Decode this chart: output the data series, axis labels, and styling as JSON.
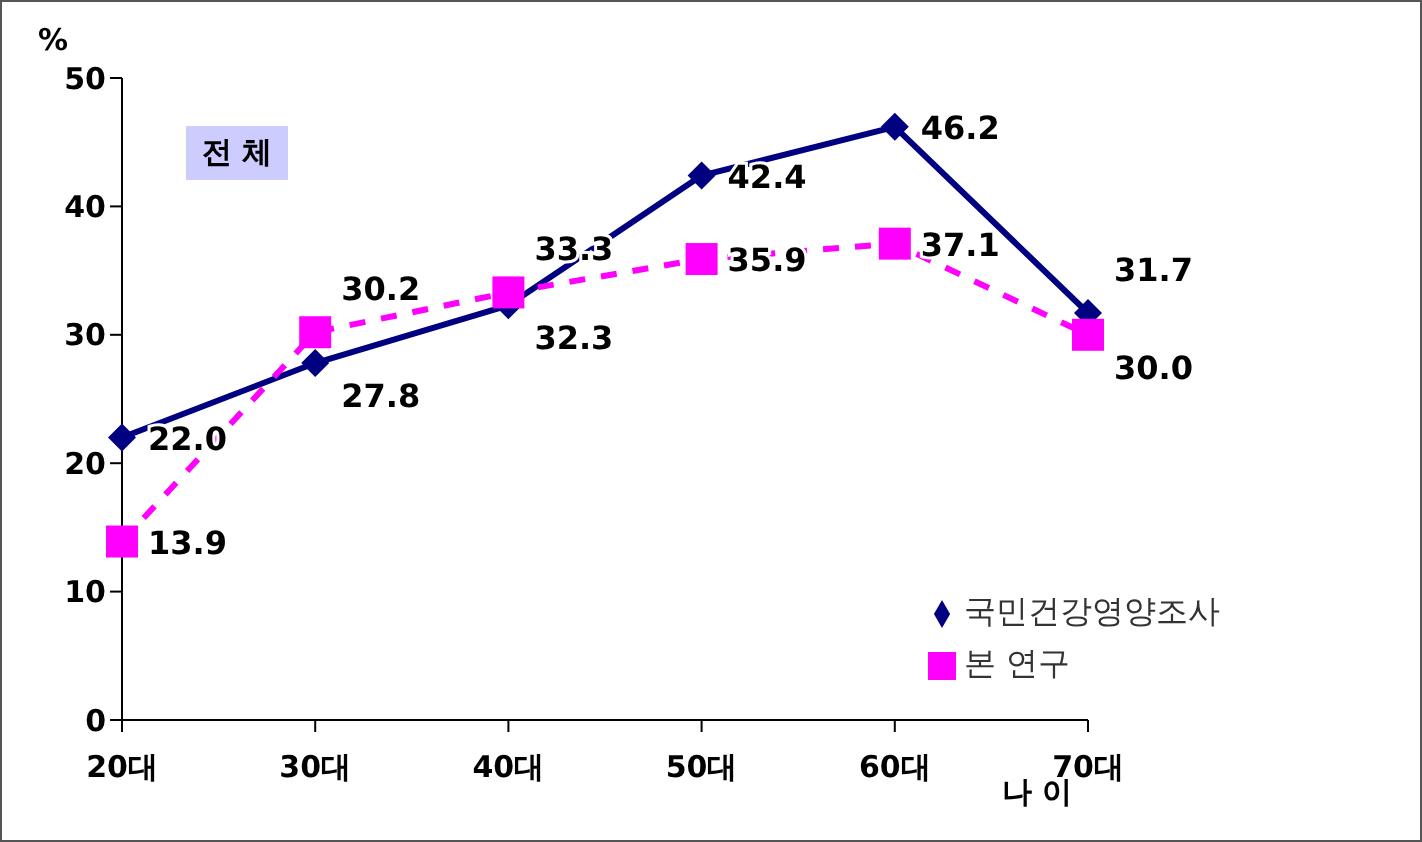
{
  "chart_data": {
    "type": "line",
    "ylabel": "%",
    "xlabel": "나 이",
    "annotations": [
      "전 체"
    ],
    "categories": [
      "20대",
      "30대",
      "40대",
      "50대",
      "60대",
      "70대"
    ],
    "ylim": [
      0,
      50
    ],
    "yticks": [
      0,
      10,
      20,
      30,
      40,
      50
    ],
    "legend": "bottom right",
    "series": [
      {
        "name": "국민건강영양조사",
        "color": "#000080",
        "marker": "diamond",
        "line_style": "solid",
        "values": [
          22.0,
          27.8,
          32.3,
          42.4,
          46.2,
          31.7
        ],
        "value_labels": [
          "22.0",
          "27.8",
          "32.3",
          "42.4",
          "46.2",
          "31.7"
        ]
      },
      {
        "name": "본 연구",
        "color": "#ff00ff",
        "marker": "square",
        "line_style": "dashed",
        "values": [
          13.9,
          30.2,
          33.3,
          35.9,
          37.1,
          30.0
        ],
        "value_labels": [
          "13.9",
          "30.2",
          "33.3",
          "35.9",
          "37.1",
          "30.0"
        ]
      }
    ]
  }
}
